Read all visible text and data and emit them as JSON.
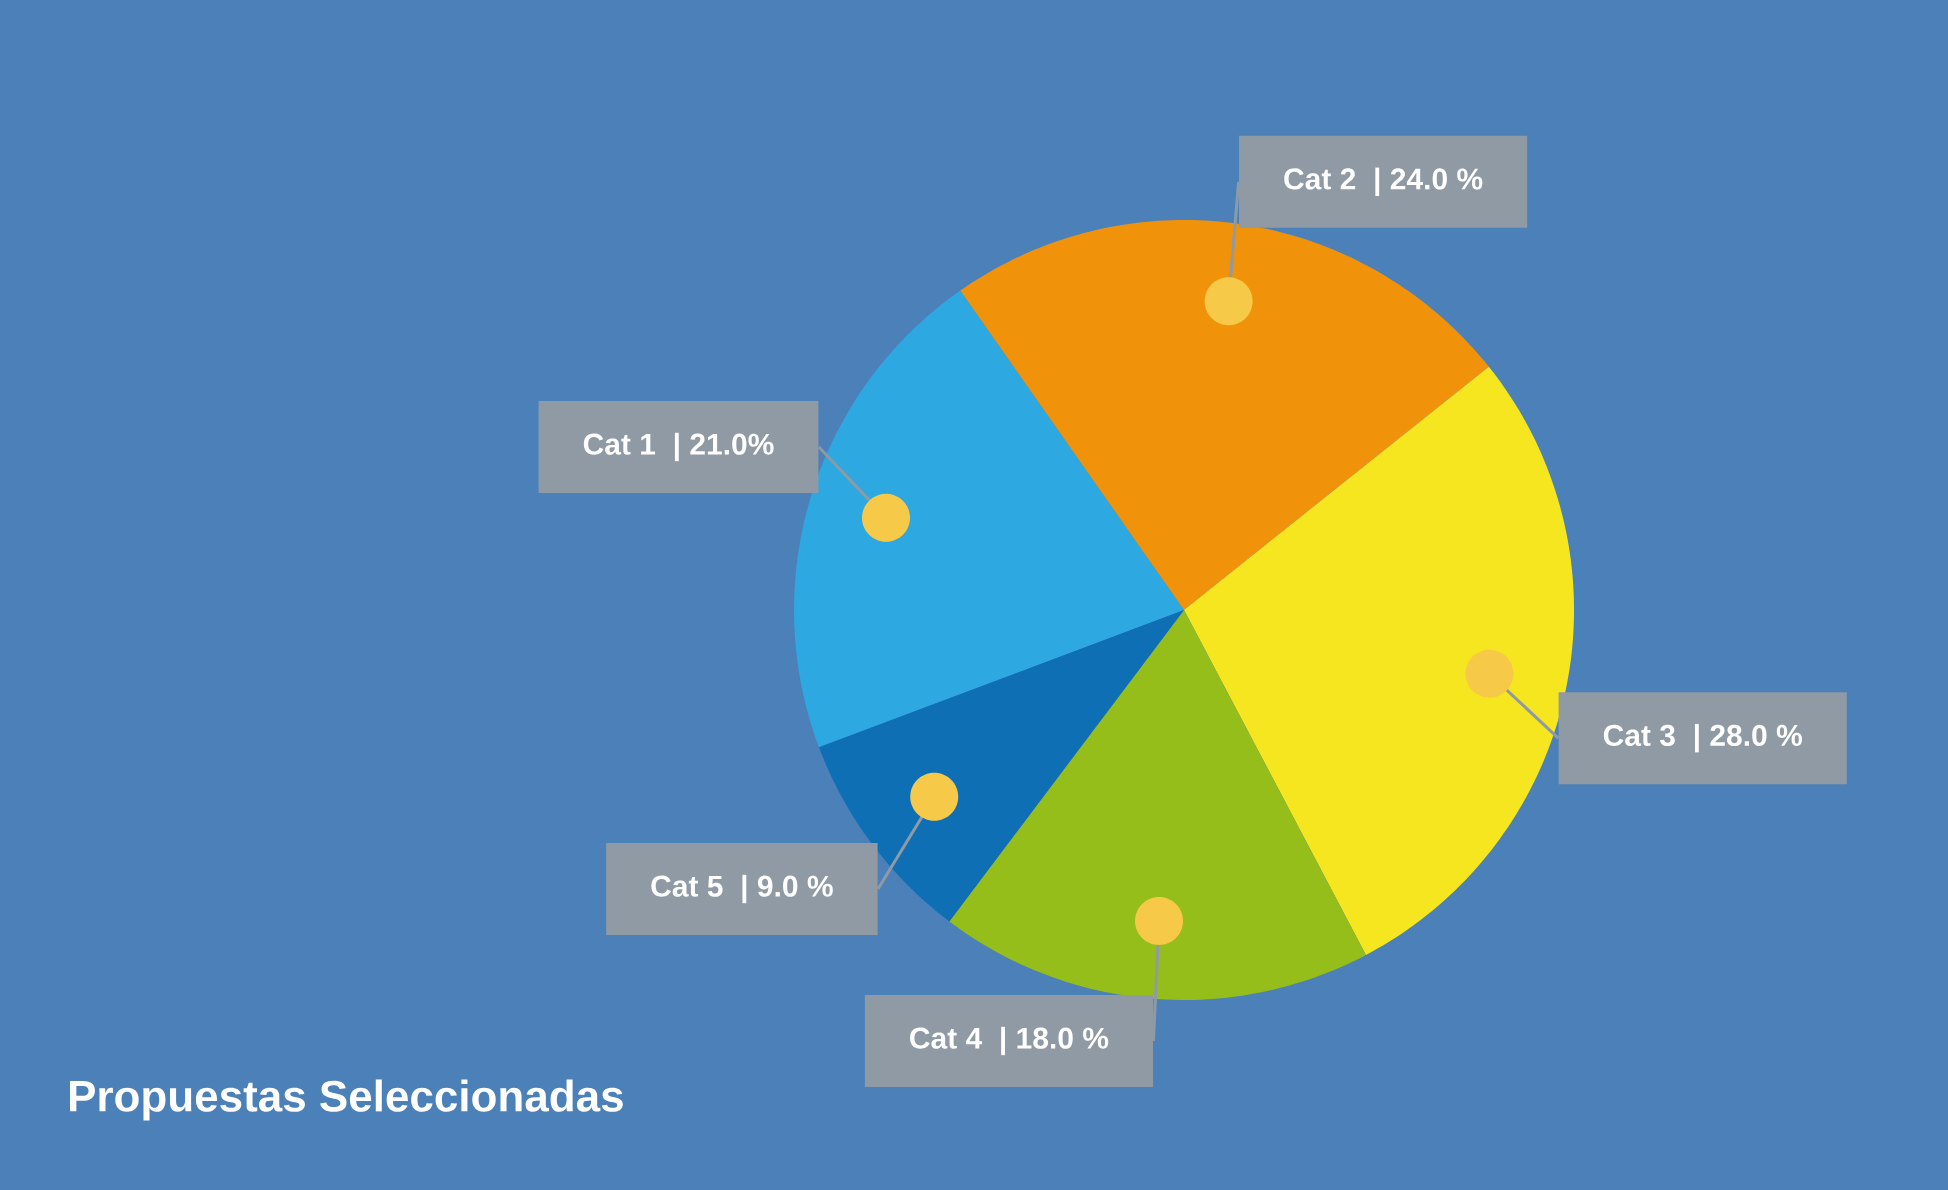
{
  "chart_data": {
    "type": "pie",
    "title": "Propuestas Seleccionadas",
    "categories": [
      "Cat 1",
      "Cat 2",
      "Cat 3",
      "Cat 4",
      "Cat 5"
    ],
    "values": [
      21,
      24,
      28,
      18,
      9
    ],
    "value_labels": [
      "| 21.0%",
      "| 24.0 %",
      "| 28.0 %",
      "| 18.0 %",
      "| 9.0 %"
    ],
    "colors": [
      "#2ea8e0",
      "#f0930a",
      "#f6e620",
      "#95be1a",
      "#0f6fb5"
    ]
  }
}
